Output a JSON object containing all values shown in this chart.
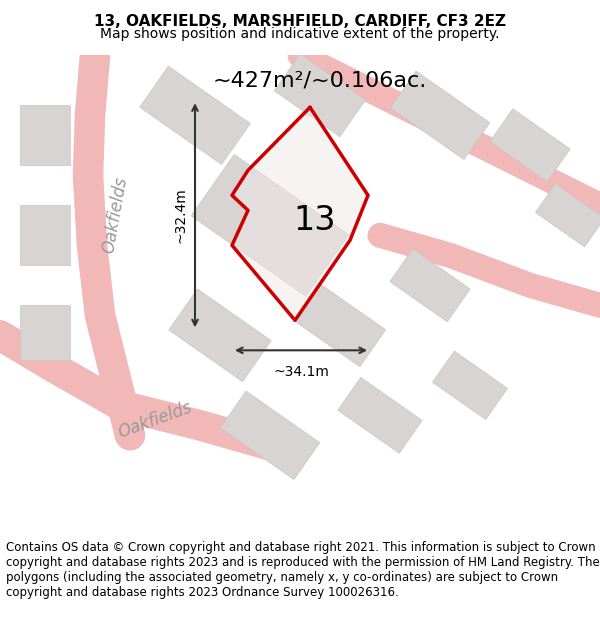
{
  "title": "13, OAKFIELDS, MARSHFIELD, CARDIFF, CF3 2EZ",
  "subtitle": "Map shows position and indicative extent of the property.",
  "footer": "Contains OS data © Crown copyright and database right 2021. This information is subject to Crown copyright and database rights 2023 and is reproduced with the permission of HM Land Registry. The polygons (including the associated geometry, namely x, y co-ordinates) are subject to Crown copyright and database rights 2023 Ordnance Survey 100026316.",
  "area_label": "~427m²/~0.106ac.",
  "property_number": "13",
  "dim_horizontal": "~34.1m",
  "dim_vertical": "~32.4m",
  "street_label_1": "Oakfields",
  "street_label_2": "Oakfields",
  "bg_color": "#f5f0f0",
  "map_bg": "#ffffff",
  "building_color": "#e0dede",
  "road_color": "#f5c0c0",
  "property_outline_color": "#cc0000",
  "property_fill": "#e8e4e4",
  "dim_color": "#333333",
  "title_fontsize": 11,
  "subtitle_fontsize": 10,
  "footer_fontsize": 8.5
}
